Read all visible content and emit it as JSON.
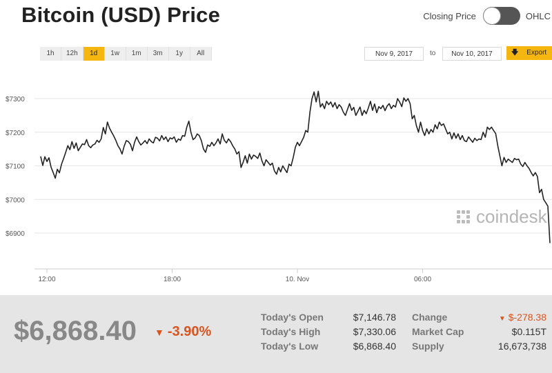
{
  "header": {
    "title": "Bitcoin (USD) Price"
  },
  "toggle": {
    "left_label": "Closing Price",
    "right_label": "OHLC"
  },
  "ranges": [
    "1h",
    "12h",
    "1d",
    "1w",
    "1m",
    "3m",
    "1y",
    "All"
  ],
  "active_range": "1d",
  "date_range": {
    "from": "Nov 9, 2017",
    "to_label": "to",
    "to": "Nov 10, 2017"
  },
  "export": {
    "label": "Export",
    "icon": "download-arrow-icon"
  },
  "watermark": "coindesk",
  "colors": {
    "accent": "#f5b70f",
    "negative": "#d9541e",
    "line": "#222222",
    "footer_bg": "#e5e5e5"
  },
  "chart_data": {
    "type": "line",
    "ylabel": "",
    "ylim": [
      6860,
      7340
    ],
    "y_ticks": [
      {
        "label": "$7300",
        "value": 7300
      },
      {
        "label": "$7200",
        "value": 7200
      },
      {
        "label": "$7100",
        "value": 7100
      },
      {
        "label": "$7000",
        "value": 7000
      },
      {
        "label": "$6900",
        "value": 6900
      }
    ],
    "x_ticks": [
      {
        "label": "12:00",
        "value": 12
      },
      {
        "label": "18:00",
        "value": 18
      },
      {
        "label": "10. Nov",
        "value": 24
      },
      {
        "label": "06:00",
        "value": 30
      }
    ],
    "xlim": [
      11.6,
      36.3
    ],
    "grid": true,
    "series": [
      {
        "values": [
          [
            11.7,
            7128
          ],
          [
            11.8,
            7101
          ],
          [
            11.9,
            7127
          ],
          [
            12.0,
            7113
          ],
          [
            12.1,
            7124
          ],
          [
            12.2,
            7096
          ],
          [
            12.3,
            7080
          ],
          [
            12.4,
            7063
          ],
          [
            12.5,
            7090
          ],
          [
            12.6,
            7079
          ],
          [
            12.7,
            7105
          ],
          [
            12.8,
            7122
          ],
          [
            12.9,
            7140
          ],
          [
            13.0,
            7160
          ],
          [
            13.1,
            7148
          ],
          [
            13.2,
            7172
          ],
          [
            13.3,
            7152
          ],
          [
            13.4,
            7168
          ],
          [
            13.5,
            7145
          ],
          [
            13.6,
            7155
          ],
          [
            13.7,
            7165
          ],
          [
            13.8,
            7163
          ],
          [
            13.9,
            7178
          ],
          [
            14.0,
            7160
          ],
          [
            14.1,
            7154
          ],
          [
            14.2,
            7162
          ],
          [
            14.3,
            7165
          ],
          [
            14.4,
            7176
          ],
          [
            14.5,
            7170
          ],
          [
            14.6,
            7180
          ],
          [
            14.7,
            7214
          ],
          [
            14.8,
            7195
          ],
          [
            14.9,
            7230
          ],
          [
            15.0,
            7212
          ],
          [
            15.1,
            7200
          ],
          [
            15.2,
            7189
          ],
          [
            15.3,
            7176
          ],
          [
            15.4,
            7160
          ],
          [
            15.5,
            7150
          ],
          [
            15.6,
            7135
          ],
          [
            15.7,
            7158
          ],
          [
            15.8,
            7175
          ],
          [
            15.9,
            7172
          ],
          [
            16.0,
            7164
          ],
          [
            16.1,
            7145
          ],
          [
            16.2,
            7170
          ],
          [
            16.3,
            7186
          ],
          [
            16.4,
            7172
          ],
          [
            16.5,
            7162
          ],
          [
            16.6,
            7168
          ],
          [
            16.7,
            7175
          ],
          [
            16.8,
            7166
          ],
          [
            16.9,
            7180
          ],
          [
            17.0,
            7172
          ],
          [
            17.1,
            7168
          ],
          [
            17.2,
            7185
          ],
          [
            17.3,
            7182
          ],
          [
            17.4,
            7174
          ],
          [
            17.5,
            7190
          ],
          [
            17.6,
            7178
          ],
          [
            17.7,
            7186
          ],
          [
            17.8,
            7172
          ],
          [
            17.9,
            7183
          ],
          [
            18.0,
            7180
          ],
          [
            18.1,
            7186
          ],
          [
            18.2,
            7170
          ],
          [
            18.3,
            7180
          ],
          [
            18.4,
            7176
          ],
          [
            18.5,
            7190
          ],
          [
            18.6,
            7188
          ],
          [
            18.7,
            7215
          ],
          [
            18.8,
            7233
          ],
          [
            18.9,
            7200
          ],
          [
            19.0,
            7178
          ],
          [
            19.1,
            7183
          ],
          [
            19.2,
            7195
          ],
          [
            19.3,
            7190
          ],
          [
            19.4,
            7175
          ],
          [
            19.5,
            7150
          ],
          [
            19.6,
            7140
          ],
          [
            19.7,
            7162
          ],
          [
            19.8,
            7158
          ],
          [
            19.9,
            7170
          ],
          [
            20.0,
            7160
          ],
          [
            20.1,
            7168
          ],
          [
            20.2,
            7180
          ],
          [
            20.3,
            7165
          ],
          [
            20.4,
            7195
          ],
          [
            20.5,
            7176
          ],
          [
            20.6,
            7168
          ],
          [
            20.7,
            7180
          ],
          [
            20.8,
            7172
          ],
          [
            20.9,
            7160
          ],
          [
            21.0,
            7150
          ],
          [
            21.1,
            7135
          ],
          [
            21.2,
            7142
          ],
          [
            21.3,
            7095
          ],
          [
            21.4,
            7110
          ],
          [
            21.5,
            7130
          ],
          [
            21.6,
            7108
          ],
          [
            21.7,
            7135
          ],
          [
            21.8,
            7120
          ],
          [
            21.9,
            7132
          ],
          [
            22.0,
            7128
          ],
          [
            22.1,
            7122
          ],
          [
            22.2,
            7138
          ],
          [
            22.3,
            7115
          ],
          [
            22.4,
            7100
          ],
          [
            22.5,
            7118
          ],
          [
            22.6,
            7110
          ],
          [
            22.7,
            7102
          ],
          [
            22.8,
            7108
          ],
          [
            22.9,
            7085
          ],
          [
            23.0,
            7075
          ],
          [
            23.1,
            7095
          ],
          [
            23.2,
            7082
          ],
          [
            23.3,
            7100
          ],
          [
            23.4,
            7090
          ],
          [
            23.5,
            7080
          ],
          [
            23.6,
            7105
          ],
          [
            23.7,
            7100
          ],
          [
            23.8,
            7125
          ],
          [
            23.9,
            7155
          ],
          [
            24.0,
            7170
          ],
          [
            24.1,
            7160
          ],
          [
            24.2,
            7172
          ],
          [
            24.3,
            7185
          ],
          [
            24.4,
            7205
          ],
          [
            24.5,
            7200
          ],
          [
            24.6,
            7260
          ],
          [
            24.7,
            7300
          ],
          [
            24.8,
            7320
          ],
          [
            24.9,
            7290
          ],
          [
            25.0,
            7322
          ],
          [
            25.1,
            7275
          ],
          [
            25.2,
            7285
          ],
          [
            25.3,
            7270
          ],
          [
            25.4,
            7292
          ],
          [
            25.5,
            7282
          ],
          [
            25.6,
            7290
          ],
          [
            25.7,
            7275
          ],
          [
            25.8,
            7288
          ],
          [
            25.9,
            7270
          ],
          [
            26.0,
            7282
          ],
          [
            26.1,
            7275
          ],
          [
            26.2,
            7260
          ],
          [
            26.3,
            7250
          ],
          [
            26.4,
            7268
          ],
          [
            26.5,
            7285
          ],
          [
            26.6,
            7265
          ],
          [
            26.7,
            7274
          ],
          [
            26.8,
            7250
          ],
          [
            26.9,
            7262
          ],
          [
            27.0,
            7275
          ],
          [
            27.1,
            7250
          ],
          [
            27.2,
            7265
          ],
          [
            27.3,
            7255
          ],
          [
            27.4,
            7272
          ],
          [
            27.5,
            7292
          ],
          [
            27.6,
            7265
          ],
          [
            27.7,
            7284
          ],
          [
            27.8,
            7258
          ],
          [
            27.9,
            7276
          ],
          [
            28.0,
            7270
          ],
          [
            28.1,
            7280
          ],
          [
            28.2,
            7264
          ],
          [
            28.3,
            7278
          ],
          [
            28.4,
            7285
          ],
          [
            28.5,
            7270
          ],
          [
            28.6,
            7280
          ],
          [
            28.7,
            7275
          ],
          [
            28.8,
            7300
          ],
          [
            28.9,
            7290
          ],
          [
            29.0,
            7276
          ],
          [
            29.1,
            7302
          ],
          [
            29.2,
            7292
          ],
          [
            29.3,
            7300
          ],
          [
            29.4,
            7285
          ],
          [
            29.5,
            7240
          ],
          [
            29.6,
            7250
          ],
          [
            29.7,
            7220
          ],
          [
            29.8,
            7200
          ],
          [
            29.9,
            7230
          ],
          [
            30.0,
            7205
          ],
          [
            30.1,
            7190
          ],
          [
            30.2,
            7210
          ],
          [
            30.3,
            7195
          ],
          [
            30.4,
            7208
          ],
          [
            30.5,
            7200
          ],
          [
            30.6,
            7222
          ],
          [
            30.7,
            7210
          ],
          [
            30.8,
            7230
          ],
          [
            30.9,
            7220
          ],
          [
            31.0,
            7225
          ],
          [
            31.1,
            7210
          ],
          [
            31.2,
            7195
          ],
          [
            31.3,
            7200
          ],
          [
            31.4,
            7180
          ],
          [
            31.5,
            7198
          ],
          [
            31.6,
            7182
          ],
          [
            31.7,
            7195
          ],
          [
            31.8,
            7178
          ],
          [
            31.9,
            7190
          ],
          [
            32.0,
            7175
          ],
          [
            32.1,
            7172
          ],
          [
            32.2,
            7186
          ],
          [
            32.3,
            7178
          ],
          [
            32.4,
            7170
          ],
          [
            32.5,
            7182
          ],
          [
            32.6,
            7175
          ],
          [
            32.7,
            7180
          ],
          [
            32.8,
            7178
          ],
          [
            32.9,
            7200
          ],
          [
            33.0,
            7185
          ],
          [
            33.1,
            7215
          ],
          [
            33.2,
            7208
          ],
          [
            33.3,
            7215
          ],
          [
            33.4,
            7205
          ],
          [
            33.5,
            7196
          ],
          [
            33.6,
            7160
          ],
          [
            33.7,
            7130
          ],
          [
            33.8,
            7100
          ],
          [
            33.9,
            7125
          ],
          [
            34.0,
            7110
          ],
          [
            34.1,
            7120
          ],
          [
            34.2,
            7115
          ],
          [
            34.3,
            7110
          ],
          [
            34.4,
            7122
          ],
          [
            34.5,
            7118
          ],
          [
            34.6,
            7120
          ],
          [
            34.7,
            7105
          ],
          [
            34.8,
            7098
          ],
          [
            34.9,
            7110
          ],
          [
            35.0,
            7100
          ],
          [
            35.1,
            7092
          ],
          [
            35.2,
            7080
          ],
          [
            35.3,
            7070
          ],
          [
            35.4,
            7080
          ],
          [
            35.5,
            7068
          ],
          [
            35.6,
            7020
          ],
          [
            35.7,
            7030
          ],
          [
            35.8,
            7000
          ],
          [
            35.9,
            6990
          ],
          [
            36.0,
            6980
          ],
          [
            36.1,
            6870
          ]
        ]
      }
    ]
  },
  "summary": {
    "price": "$6,868.40",
    "change_pct": "-3.90%",
    "stats": {
      "open_label": "Today's Open",
      "open_value": "$7,146.78",
      "high_label": "Today's High",
      "high_value": "$7,330.06",
      "low_label": "Today's Low",
      "low_value": "$6,868.40",
      "change_label": "Change",
      "change_value": "$-278.38",
      "mcap_label": "Market Cap",
      "mcap_value": "$0.115T",
      "supply_label": "Supply",
      "supply_value": "16,673,738"
    }
  }
}
